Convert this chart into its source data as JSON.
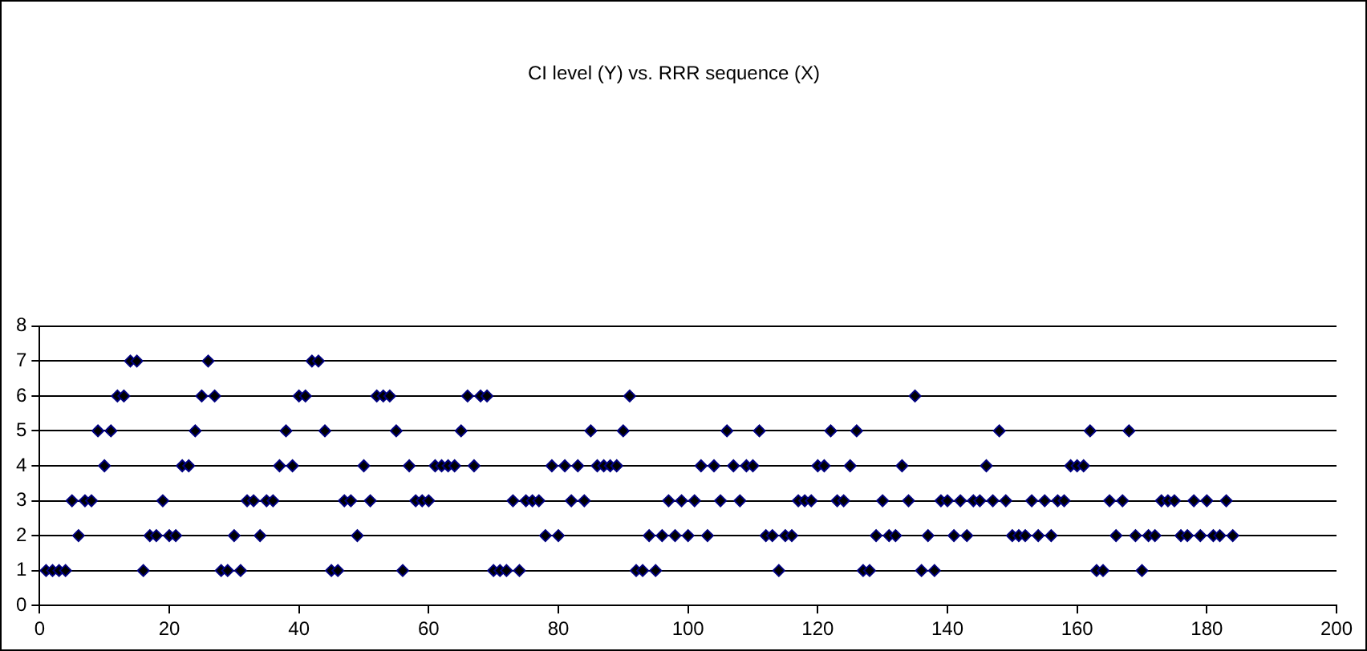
{
  "chart_data": {
    "type": "scatter",
    "title": "CI level (Y) vs. RRR sequence (X)",
    "series": [
      {
        "color": "#000080",
        "x": [
          1,
          2,
          3,
          4,
          5,
          6,
          7,
          8,
          9,
          10,
          11,
          12,
          13,
          14,
          15,
          16,
          17,
          18,
          19,
          20,
          21,
          22,
          23,
          24,
          25,
          26,
          27,
          28,
          29,
          30,
          31,
          32,
          33,
          34,
          35,
          36,
          37,
          38,
          39,
          40,
          41,
          42,
          43,
          44,
          45,
          46,
          47,
          48,
          49,
          50,
          51,
          52,
          53,
          54,
          55,
          56,
          57,
          58,
          59,
          60,
          61,
          62,
          63,
          64,
          65,
          66,
          67,
          68,
          69,
          70,
          71,
          72,
          73,
          74,
          75,
          76,
          77,
          78,
          79,
          80,
          81,
          82,
          83,
          84,
          85,
          86,
          87,
          88,
          89,
          90,
          91,
          92,
          93,
          94,
          95,
          96,
          97,
          98,
          99,
          100,
          101,
          102,
          103,
          104,
          105,
          106,
          107,
          108,
          109,
          110,
          111,
          112,
          113,
          114,
          115,
          116,
          117,
          118,
          119,
          120,
          121,
          122,
          123,
          124,
          125,
          126,
          127,
          128,
          129,
          130,
          131,
          132,
          133,
          134,
          135,
          136,
          137,
          138,
          139,
          140,
          141,
          142,
          143,
          144,
          145,
          146,
          147,
          148,
          149,
          150,
          151,
          152,
          153,
          154,
          155,
          156,
          157,
          158,
          159,
          160,
          161,
          162,
          163,
          164,
          165,
          166,
          167,
          168,
          169,
          170,
          171,
          172,
          173,
          174,
          175,
          176,
          177,
          178,
          179,
          180,
          181,
          182,
          183,
          184
        ],
        "values": [
          1,
          1,
          1,
          1,
          3,
          2,
          3,
          3,
          5,
          4,
          5,
          6,
          6,
          7,
          7,
          1,
          2,
          2,
          3,
          2,
          2,
          4,
          4,
          5,
          6,
          7,
          6,
          1,
          1,
          2,
          1,
          3,
          3,
          2,
          3,
          3,
          4,
          5,
          4,
          6,
          6,
          7,
          7,
          5,
          1,
          1,
          3,
          3,
          2,
          4,
          3,
          6,
          6,
          6,
          5,
          1,
          4,
          3,
          3,
          3,
          4,
          4,
          4,
          4,
          5,
          6,
          4,
          6,
          6,
          1,
          1,
          1,
          3,
          1,
          3,
          3,
          3,
          2,
          4,
          2,
          4,
          3,
          4,
          3,
          5,
          4,
          4,
          4,
          4,
          5,
          6,
          1,
          1,
          2,
          1,
          2,
          3,
          2,
          3,
          2,
          3,
          4,
          2,
          4,
          3,
          5,
          4,
          3,
          4,
          4,
          5,
          2,
          2,
          1,
          2,
          2,
          3,
          3,
          3,
          4,
          4,
          5,
          3,
          3,
          4,
          5,
          1,
          1,
          2,
          3,
          2,
          2,
          4,
          3,
          6,
          1,
          2,
          1,
          3,
          3,
          2,
          3,
          2,
          3,
          3,
          4,
          3,
          5,
          3,
          2,
          2,
          2,
          3,
          2,
          3,
          2,
          3,
          3,
          4,
          4,
          4,
          5,
          1,
          1,
          3,
          2,
          3,
          5,
          2,
          1,
          2,
          2,
          3,
          3,
          3,
          2,
          2,
          3,
          2,
          3,
          2,
          2,
          3,
          2
        ]
      }
    ],
    "xlim": [
      0,
      200
    ],
    "xticks": [
      0,
      20,
      40,
      60,
      80,
      100,
      120,
      140,
      160,
      180,
      200
    ],
    "ylim": [
      0,
      8
    ],
    "yticks": [
      0,
      1,
      2,
      3,
      4,
      5,
      6,
      7,
      8
    ],
    "grid": "y",
    "legend": false,
    "marker": "diamond"
  }
}
